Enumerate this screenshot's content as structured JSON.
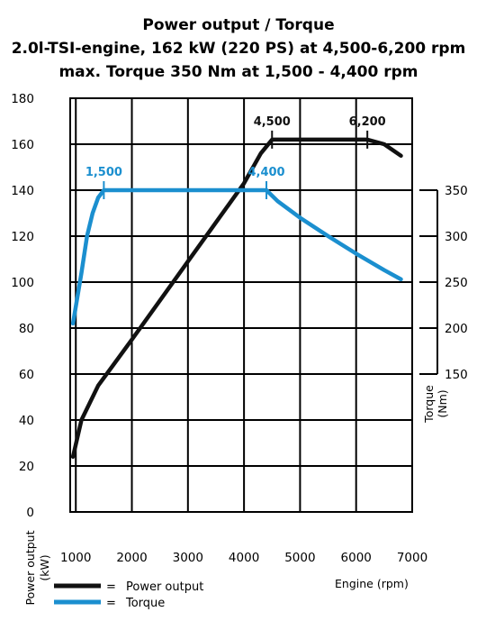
{
  "chart_data": {
    "type": "line",
    "title": "Power output / Torque",
    "subtitle": "2.0l-TSI-engine, 162 kW (220 PS) at 4,500-6,200 rpm",
    "subtitle2": "max. Torque 350 Nm at 1,500 - 4,400 rpm",
    "xlabel": "Engine (rpm)",
    "ylabel_left_1": "Power output",
    "ylabel_left_2": "(kW)",
    "ylabel_right_1": "Torque",
    "ylabel_right_2": "(Nm)",
    "xlim": [
      900,
      7000
    ],
    "ylim_left": [
      0,
      180
    ],
    "ylim_right": [
      150,
      350
    ],
    "x_ticks": [
      1000,
      2000,
      3000,
      4000,
      5000,
      6000,
      7000
    ],
    "x_tick_labels": [
      "1000",
      "2000",
      "3000",
      "4000",
      "5000",
      "6000",
      "7000"
    ],
    "y_ticks_left": [
      0,
      20,
      40,
      60,
      80,
      100,
      120,
      140,
      160,
      180
    ],
    "y_tick_labels_left": [
      "0",
      "20",
      "40",
      "60",
      "80",
      "100",
      "120",
      "140",
      "160",
      "180"
    ],
    "y_ticks_right": [
      150,
      200,
      250,
      300,
      350
    ],
    "y_tick_labels_right": [
      "150",
      "200",
      "250",
      "300",
      "350"
    ],
    "grid": true,
    "legend_placement": "bottom-left",
    "series": [
      {
        "name": "Power output",
        "axis": "left",
        "color": "#111111",
        "x": [
          950,
          1100,
          1400,
          2000,
          2500,
          3000,
          3500,
          4000,
          4300,
          4500,
          5000,
          5500,
          6000,
          6200,
          6500,
          6800
        ],
        "y": [
          24,
          40,
          55,
          75,
          92,
          109,
          126,
          143,
          156,
          162,
          162,
          162,
          162,
          162,
          160,
          155
        ]
      },
      {
        "name": "Torque",
        "axis": "right",
        "color": "#1b8fcf",
        "x": [
          950,
          1100,
          1200,
          1300,
          1400,
          1500,
          2000,
          3000,
          4000,
          4400,
          4600,
          5000,
          5500,
          6000,
          6500,
          6800
        ],
        "y": [
          205,
          260,
          300,
          325,
          342,
          350,
          350,
          350,
          350,
          350,
          338,
          320,
          300,
          281,
          263,
          253
        ]
      }
    ],
    "annotations": [
      {
        "label": "1,500",
        "x": 1500,
        "series": "Torque",
        "color": "#1b8fcf"
      },
      {
        "label": "4,400",
        "x": 4400,
        "series": "Torque",
        "color": "#1b8fcf"
      },
      {
        "label": "4,500",
        "x": 4500,
        "series": "Power output",
        "color": "#111111"
      },
      {
        "label": "6,200",
        "x": 6200,
        "series": "Power output",
        "color": "#111111"
      }
    ],
    "legend": [
      {
        "symbol": "=",
        "label": "Power output",
        "series": "Power output"
      },
      {
        "symbol": "=",
        "label": "Torque",
        "series": "Torque"
      }
    ]
  }
}
